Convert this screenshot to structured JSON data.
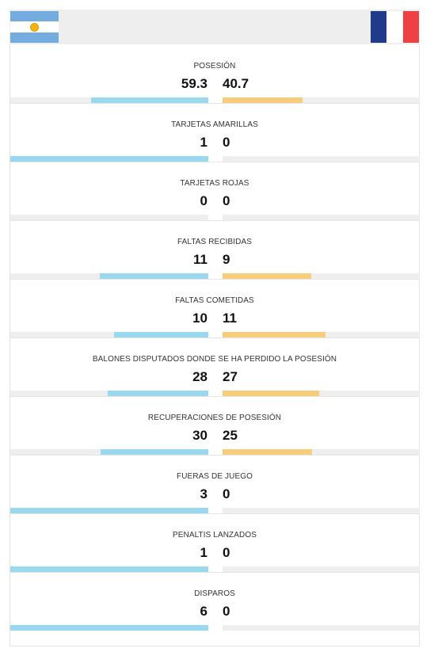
{
  "teams": {
    "home": {
      "name": "Argentina",
      "flag_icon": "argentina-flag-icon",
      "bar_color": "#9ad8ef"
    },
    "away": {
      "name": "France",
      "flag_icon": "france-flag-icon",
      "bar_color": "#f7cc7a"
    }
  },
  "stats": [
    {
      "label": "POSESIÓN",
      "home": "59.3",
      "away": "40.7",
      "home_share": 0.593,
      "away_share": 0.407
    },
    {
      "label": "TARJETAS AMARILLAS",
      "home": "1",
      "away": "0",
      "home_share": 1.0,
      "away_share": 0.0
    },
    {
      "label": "TARJETAS ROJAS",
      "home": "0",
      "away": "0",
      "home_share": 0.0,
      "away_share": 0.0
    },
    {
      "label": "FALTAS RECIBIDAS",
      "home": "11",
      "away": "9",
      "home_share": 0.55,
      "away_share": 0.45
    },
    {
      "label": "FALTAS COMETIDAS",
      "home": "10",
      "away": "11",
      "home_share": 0.476,
      "away_share": 0.524
    },
    {
      "label": "BALONES DISPUTADOS DONDE SE HA PERDIDO LA POSESIÓN",
      "home": "28",
      "away": "27",
      "home_share": 0.509,
      "away_share": 0.491
    },
    {
      "label": "RECUPERACIONES DE POSESIÓN",
      "home": "30",
      "away": "25",
      "home_share": 0.545,
      "away_share": 0.455
    },
    {
      "label": "FUERAS DE JUEGO",
      "home": "3",
      "away": "0",
      "home_share": 1.0,
      "away_share": 0.0
    },
    {
      "label": "PENALTIS LANZADOS",
      "home": "1",
      "away": "0",
      "home_share": 1.0,
      "away_share": 0.0
    },
    {
      "label": "DISPAROS",
      "home": "6",
      "away": "0",
      "home_share": 1.0,
      "away_share": 0.0
    }
  ]
}
